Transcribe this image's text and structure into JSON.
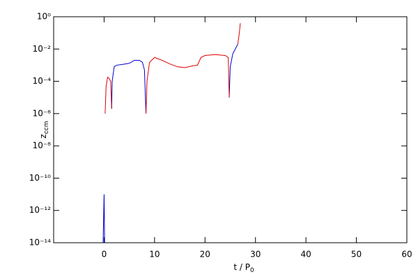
{
  "chart_data": {
    "type": "line",
    "log_y": true,
    "xlabel": {
      "text": "t / P",
      "subscript": "0"
    },
    "ylabel": {
      "text": "z",
      "subscript": "ccm"
    },
    "xlim": [
      -10,
      60
    ],
    "xticks": [
      0,
      10,
      20,
      30,
      40,
      50,
      60
    ],
    "ylim": [
      1e-14,
      1
    ],
    "yticks": [
      {
        "value": 1e-14,
        "label": "10⁻¹⁴"
      },
      {
        "value": 1e-12,
        "label": "10⁻¹²"
      },
      {
        "value": 1e-10,
        "label": "10⁻¹⁰"
      },
      {
        "value": 1e-08,
        "label": "10⁻⁸"
      },
      {
        "value": 1e-06,
        "label": "10⁻⁶"
      },
      {
        "value": 0.0001,
        "label": "10⁻⁴"
      },
      {
        "value": 0.01,
        "label": "10⁻²"
      },
      {
        "value": 1,
        "label": "10⁰"
      }
    ],
    "x": [
      -0.2,
      0,
      0.1,
      0.2,
      0.4,
      0.7,
      1.0,
      1.3,
      1.5,
      1.6,
      2.0,
      2.5,
      3.5,
      5.0,
      6.0,
      7.0,
      7.6,
      8.0,
      8.3,
      8.5,
      9.0,
      10,
      11.5,
      13,
      14.5,
      16,
      17.5,
      18.5,
      19.2,
      20,
      22,
      24,
      24.6,
      24.8,
      25,
      25.5,
      26,
      26.5,
      26.8,
      27
    ],
    "series": [
      {
        "color": "#0000cc",
        "values": [
          1e-14,
          1e-11,
          1e-14,
          null,
          null,
          null,
          null,
          null,
          2e-06,
          0.0001,
          0.0008,
          0.001,
          0.0011,
          0.0013,
          0.002,
          0.002,
          0.0015,
          0.0005,
          1e-06,
          null,
          null,
          null,
          null,
          null,
          null,
          null,
          null,
          null,
          null,
          null,
          null,
          null,
          null,
          1e-05,
          0.0008,
          0.005,
          0.01,
          0.02,
          null,
          null
        ]
      },
      {
        "color": "#dd0000",
        "values": [
          null,
          null,
          null,
          1e-06,
          5e-05,
          0.00018,
          0.00015,
          0.0001,
          2e-06,
          null,
          null,
          null,
          null,
          null,
          null,
          null,
          null,
          null,
          1e-06,
          0.0001,
          0.0015,
          0.003,
          0.002,
          0.0012,
          0.0008,
          0.0007,
          0.0009,
          0.001,
          0.003,
          0.004,
          0.0045,
          0.004,
          0.003,
          1e-05,
          null,
          null,
          null,
          0.02,
          0.1,
          0.4
        ]
      }
    ]
  }
}
